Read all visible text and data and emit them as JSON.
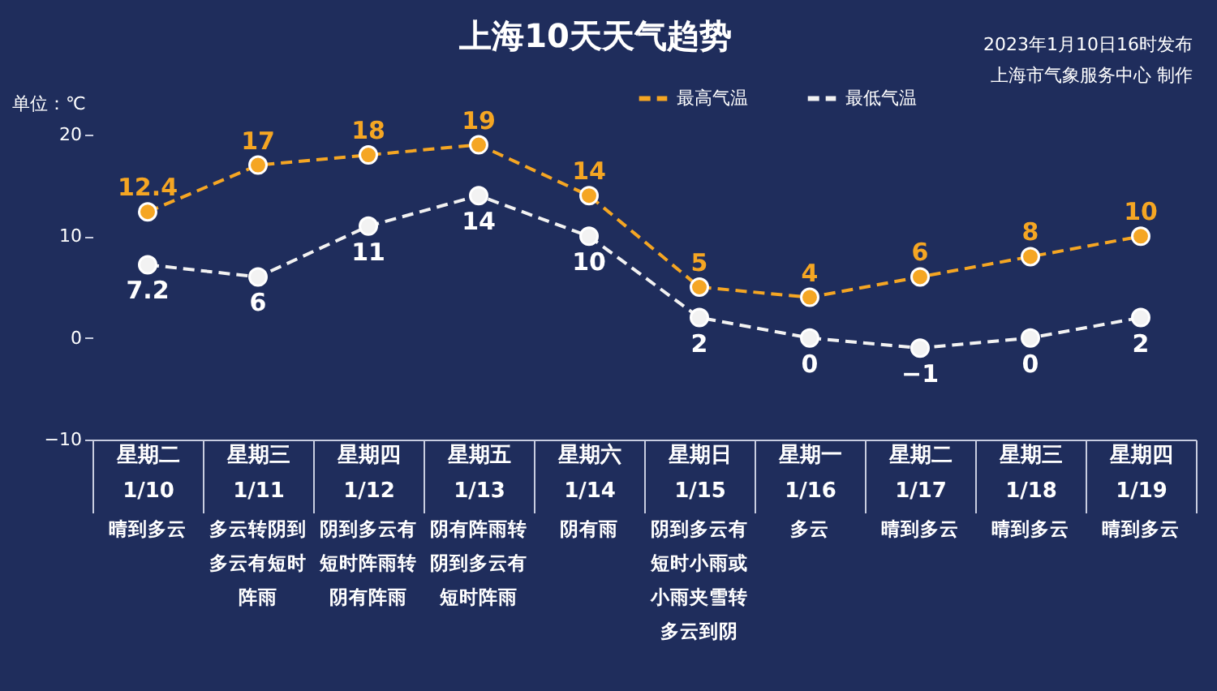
{
  "chart_data": {
    "type": "line",
    "title": "上海10天天气趋势",
    "ylabel": "单位：℃",
    "annotations": [
      "2023年1月10日16时发布",
      "上海市气象服务中心 制作",
      "晴到多云",
      "多云转阴到多云有短时阵雨",
      "阴到多云有短时阵雨转阴有阵雨",
      "阴有阵雨转阴到多云有短时阵雨",
      "阴有雨",
      "阴到多云有短时小雨或小雨夹雪转多云到阴",
      "多云",
      "晴到多云",
      "晴到多云",
      "晴到多云"
    ],
    "categories": [
      "星期二\n1/10",
      "星期三\n1/11",
      "星期四\n1/12",
      "星期五\n1/13",
      "星期六\n1/14",
      "星期日\n1/15",
      "星期一\n1/16",
      "星期二\n1/17",
      "星期三\n1/18",
      "星期四\n1/19"
    ],
    "series": [
      {
        "name": "最高气温",
        "color": "#f5a623",
        "values": [
          12.4,
          17,
          18,
          19,
          14,
          5,
          4,
          6,
          8,
          10
        ]
      },
      {
        "name": "最低气温",
        "color": "#f2f2f2",
        "values": [
          7.2,
          6,
          11,
          14,
          10,
          2,
          0,
          -1,
          0,
          2
        ]
      }
    ],
    "ylim": [
      -10,
      20
    ],
    "yticks": [
      -10,
      0,
      10,
      20
    ],
    "grid": false,
    "legend": "top right",
    "marker": "circle",
    "line_style": "dashed",
    "data_labels": true
  }
}
